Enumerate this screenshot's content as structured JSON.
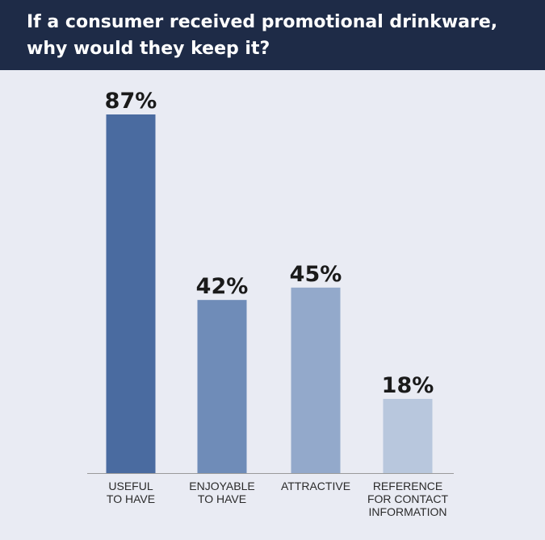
{
  "header": {
    "title_line1": "If a consumer received promotional drinkware,",
    "title_line2": "why would they keep it?"
  },
  "chart_data": {
    "type": "bar",
    "title": "If a consumer received promotional drinkware, why would they keep it?",
    "categories": [
      [
        "USEFUL",
        "TO HAVE"
      ],
      [
        "ENJOYABLE",
        "TO HAVE"
      ],
      [
        "ATTRACTIVE"
      ],
      [
        "REFERENCE",
        "FOR CONTACT",
        "INFORMATION"
      ]
    ],
    "values": [
      87,
      42,
      45,
      18
    ],
    "value_labels": [
      "87%",
      "42%",
      "45%",
      "18%"
    ],
    "colors": [
      "#4a6ba0",
      "#6f8cb8",
      "#93a9cb",
      "#b8c7dd"
    ],
    "ylim": [
      0,
      100
    ],
    "grid": false,
    "legend": "none",
    "xlabel": "",
    "ylabel": ""
  }
}
